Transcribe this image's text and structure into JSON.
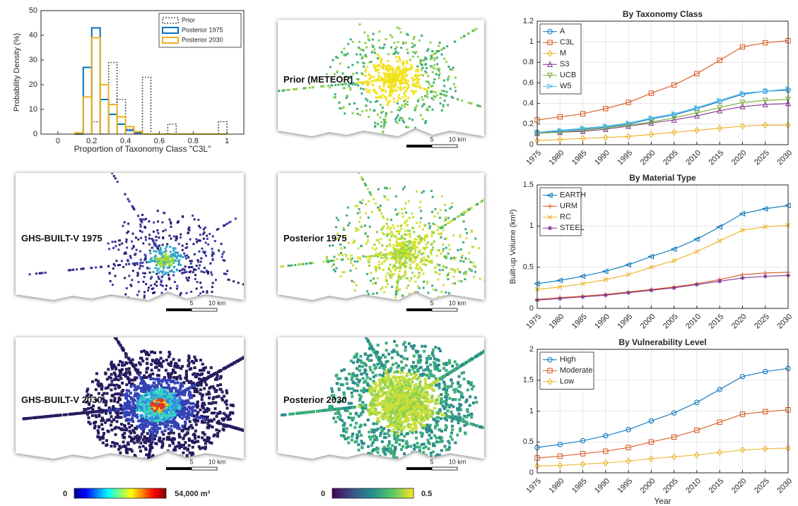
{
  "chart_data": [
    {
      "type": "histogram",
      "xlabel": "Proportion of Taxonomy Class \"C3L\"",
      "ylabel": "Probability Density (%)",
      "bins": [
        0.1,
        0.15,
        0.2,
        0.25,
        0.3,
        0.35,
        0.4,
        0.45,
        0.5,
        0.55,
        0.6,
        0.65,
        0.7,
        0.75,
        0.8,
        0.85,
        0.9,
        0.95,
        1.0
      ],
      "series": [
        {
          "name": "Prior",
          "color": "#555555",
          "style": "dotted",
          "values": [
            0,
            0,
            5,
            0,
            29,
            14,
            2,
            0,
            23,
            0,
            0,
            4,
            0,
            0,
            0,
            0,
            0,
            5
          ]
        },
        {
          "name": "Posterior 1975",
          "color": "#0072BD",
          "style": "solid",
          "values": [
            0,
            27,
            43,
            14,
            8,
            4,
            1.5,
            0.5,
            0,
            0,
            0,
            0,
            0,
            0,
            0,
            0,
            0,
            0
          ]
        },
        {
          "name": "Posterior 2030",
          "color": "#EDB120",
          "style": "solid",
          "values": [
            0.5,
            15,
            39,
            20,
            12,
            7,
            3,
            1,
            0,
            0,
            0,
            0,
            0,
            0,
            0,
            0,
            0,
            0
          ]
        }
      ],
      "xlim": [
        -0.1,
        1.1
      ],
      "xticks": [
        0,
        0.2,
        0.4,
        0.6,
        0.8,
        1
      ],
      "ylim": [
        0,
        50
      ],
      "yticks": [
        0,
        10,
        20,
        30,
        40,
        50
      ],
      "legend": "northeast",
      "grid": false
    },
    {
      "type": "line",
      "title": "By Taxonomy Class",
      "x": [
        1975,
        1980,
        1985,
        1990,
        1995,
        2000,
        2005,
        2010,
        2015,
        2020,
        2025,
        2030
      ],
      "xlim": [
        1975,
        2030
      ],
      "xticks": [
        1975,
        1980,
        1985,
        1990,
        1995,
        2000,
        2005,
        2010,
        2015,
        2020,
        2025,
        2030
      ],
      "ylim": [
        0,
        1.2
      ],
      "yticks": [
        0,
        0.2,
        0.4,
        0.6,
        0.8,
        1,
        1.2
      ],
      "grid": true,
      "legend": "northwest",
      "series": [
        {
          "name": "A",
          "color": "#0072BD",
          "marker": "o",
          "values": [
            0.12,
            0.13,
            0.15,
            0.17,
            0.2,
            0.25,
            0.29,
            0.35,
            0.42,
            0.49,
            0.52,
            0.53
          ]
        },
        {
          "name": "C3L",
          "color": "#D95319",
          "marker": "s",
          "values": [
            0.24,
            0.27,
            0.3,
            0.35,
            0.41,
            0.5,
            0.58,
            0.69,
            0.82,
            0.95,
            0.99,
            1.01
          ]
        },
        {
          "name": "M",
          "color": "#EDB120",
          "marker": "d",
          "values": [
            0.04,
            0.05,
            0.06,
            0.07,
            0.08,
            0.1,
            0.12,
            0.14,
            0.16,
            0.18,
            0.19,
            0.19
          ]
        },
        {
          "name": "S3",
          "color": "#7E2F8E",
          "marker": "^",
          "values": [
            0.11,
            0.12,
            0.13,
            0.15,
            0.18,
            0.21,
            0.24,
            0.28,
            0.33,
            0.37,
            0.39,
            0.4
          ]
        },
        {
          "name": "UCB",
          "color": "#77AC30",
          "marker": "v",
          "values": [
            0.11,
            0.12,
            0.14,
            0.16,
            0.19,
            0.22,
            0.26,
            0.31,
            0.36,
            0.41,
            0.43,
            0.44
          ]
        },
        {
          "name": "W5",
          "color": "#4DBEEE",
          "marker": ">",
          "values": [
            0.12,
            0.14,
            0.16,
            0.18,
            0.21,
            0.26,
            0.3,
            0.36,
            0.43,
            0.5,
            0.52,
            0.54
          ]
        }
      ]
    },
    {
      "type": "line",
      "title": "By Material Type",
      "ylabel": "Built-up Volume (km³)",
      "x": [
        1975,
        1980,
        1985,
        1990,
        1995,
        2000,
        2005,
        2010,
        2015,
        2020,
        2025,
        2030
      ],
      "xlim": [
        1975,
        2030
      ],
      "xticks": [
        1975,
        1980,
        1985,
        1990,
        1995,
        2000,
        2005,
        2010,
        2015,
        2020,
        2025,
        2030
      ],
      "ylim": [
        0,
        1.5
      ],
      "yticks": [
        0,
        0.5,
        1,
        1.5
      ],
      "grid": true,
      "legend": "northwest",
      "series": [
        {
          "name": "EARTH",
          "color": "#0072BD",
          "marker": "<",
          "values": [
            0.3,
            0.34,
            0.39,
            0.45,
            0.53,
            0.63,
            0.72,
            0.84,
            0.99,
            1.15,
            1.21,
            1.25
          ]
        },
        {
          "name": "URM",
          "color": "#D95319",
          "marker": "+",
          "values": [
            0.11,
            0.13,
            0.15,
            0.17,
            0.2,
            0.23,
            0.26,
            0.3,
            0.35,
            0.41,
            0.43,
            0.44
          ]
        },
        {
          "name": "RC",
          "color": "#EDB120",
          "marker": "x",
          "values": [
            0.23,
            0.26,
            0.3,
            0.35,
            0.41,
            0.5,
            0.58,
            0.69,
            0.82,
            0.95,
            0.99,
            1.01
          ]
        },
        {
          "name": "STEEL",
          "color": "#7E2F8E",
          "marker": "*",
          "values": [
            0.1,
            0.12,
            0.14,
            0.16,
            0.19,
            0.22,
            0.25,
            0.29,
            0.33,
            0.37,
            0.39,
            0.4
          ]
        }
      ]
    },
    {
      "type": "line",
      "title": "By Vulnerability Level",
      "xlabel": "Year",
      "x": [
        1975,
        1980,
        1985,
        1990,
        1995,
        2000,
        2005,
        2010,
        2015,
        2020,
        2025,
        2030
      ],
      "xlim": [
        1975,
        2030
      ],
      "xticks": [
        1975,
        1980,
        1985,
        1990,
        1995,
        2000,
        2005,
        2010,
        2015,
        2020,
        2025,
        2030
      ],
      "ylim": [
        0,
        2
      ],
      "yticks": [
        0,
        0.5,
        1,
        1.5,
        2
      ],
      "grid": true,
      "legend": "northwest",
      "series": [
        {
          "name": "High",
          "color": "#0072BD",
          "marker": "o",
          "values": [
            0.41,
            0.46,
            0.52,
            0.6,
            0.7,
            0.84,
            0.97,
            1.14,
            1.35,
            1.56,
            1.64,
            1.69
          ]
        },
        {
          "name": "Moderate",
          "color": "#D95319",
          "marker": "s",
          "values": [
            0.24,
            0.27,
            0.31,
            0.35,
            0.41,
            0.5,
            0.58,
            0.69,
            0.82,
            0.95,
            0.99,
            1.02
          ]
        },
        {
          "name": "Low",
          "color": "#EDB120",
          "marker": "d",
          "values": [
            0.11,
            0.12,
            0.14,
            0.16,
            0.19,
            0.23,
            0.26,
            0.29,
            0.33,
            0.37,
            0.39,
            0.4
          ]
        }
      ]
    }
  ],
  "maps": [
    {
      "label": "Prior (METEOR)",
      "scale_labels": [
        "5",
        "10 km"
      ]
    },
    {
      "label": "GHS-BUILT-V 1975",
      "scale_labels": [
        "5",
        "10 km"
      ]
    },
    {
      "label": "Posterior 1975",
      "scale_labels": [
        "5",
        "10 km"
      ]
    },
    {
      "label": "GHS-BUILT-V 2030",
      "scale_labels": [
        "5",
        "10 km"
      ]
    },
    {
      "label": "Posterior 2030",
      "scale_labels": [
        "5",
        "10 km"
      ]
    }
  ],
  "colorbars": [
    {
      "min_label": "0",
      "max_label": "54,000 m³"
    },
    {
      "min_label": "0",
      "max_label": "0.5"
    }
  ]
}
